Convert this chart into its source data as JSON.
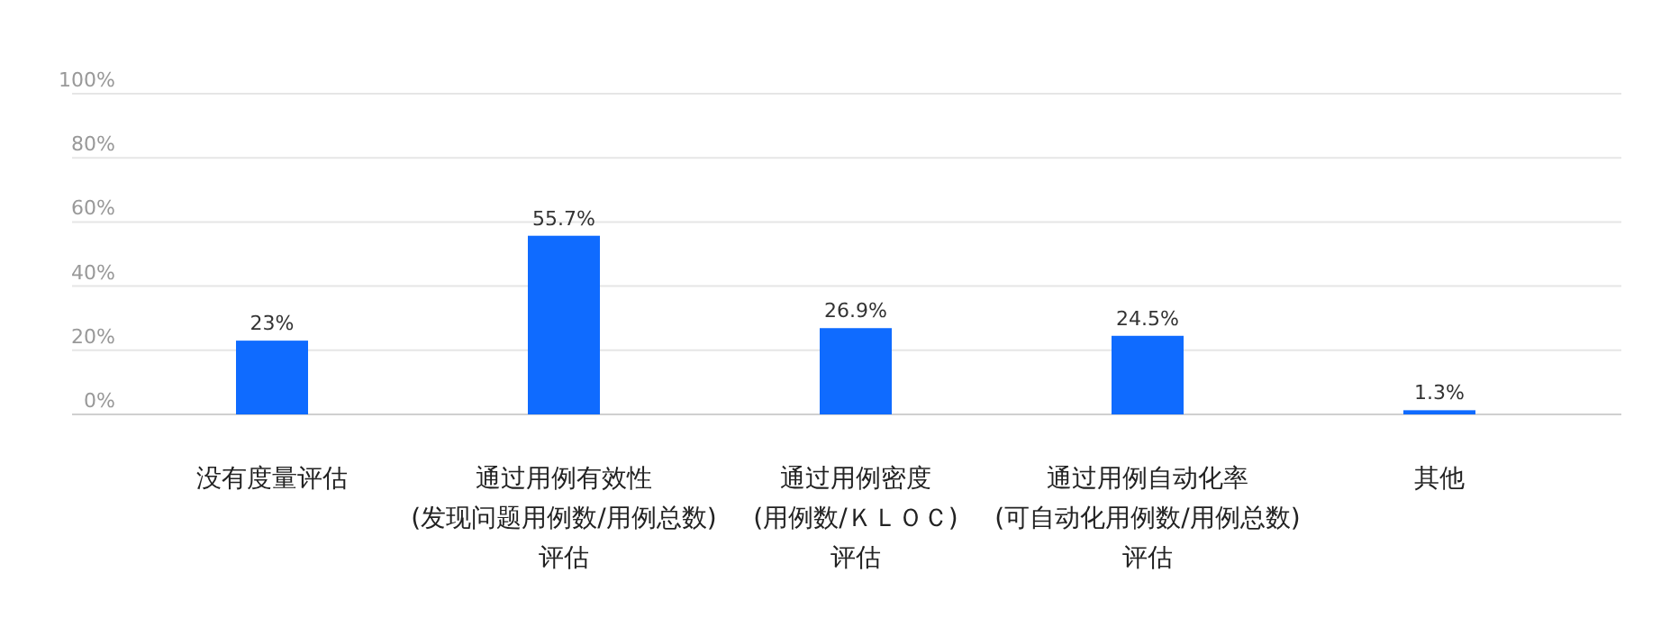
{
  "chart_data": {
    "type": "bar",
    "categories": [
      "没有度量评估",
      "通过用例有效性\n(发现问题用例数/用例总数)\n评估",
      "通过用例密度\n(用例数/ＫＬＯＣ)\n评估",
      "通过用例自动化率\n(可自动化用例数/用例总数)\n评估",
      "其他"
    ],
    "values": [
      23,
      55.7,
      26.9,
      24.5,
      1.3
    ],
    "value_labels": [
      "23%",
      "55.7%",
      "26.9%",
      "24.5%",
      "1.3%"
    ],
    "color": "#0f6bff",
    "ylim": [
      0,
      100
    ],
    "yticks": [
      {
        "value": 0,
        "label": "0%"
      },
      {
        "value": 20,
        "label": "20%"
      },
      {
        "value": 40,
        "label": "40%"
      },
      {
        "value": 60,
        "label": "60%"
      },
      {
        "value": 80,
        "label": "80%"
      },
      {
        "value": 100,
        "label": "100%"
      }
    ],
    "grid": "y"
  }
}
